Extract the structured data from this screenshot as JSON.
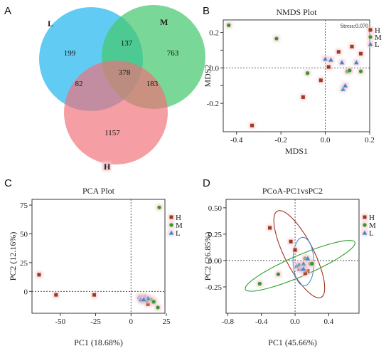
{
  "colors": {
    "H": "#9b3a22",
    "M": "#2e9a2e",
    "L": "#3b87d6",
    "ellipse_H": "#a0301f",
    "ellipse_M": "#2f9d2f",
    "ellipse_L": "#3a8fd8",
    "venn_L": "#3fc0f2",
    "venn_M": "#45c86f",
    "venn_H": "#f07078",
    "glow": "#f4c7cc"
  },
  "panels": {
    "A": {
      "letter": "A"
    },
    "B": {
      "letter": "B"
    },
    "C": {
      "letter": "C"
    },
    "D": {
      "letter": "D"
    }
  },
  "chart_data": [
    {
      "type": "venn",
      "panel": "A",
      "sets": [
        "L",
        "M",
        "H"
      ],
      "labels": {
        "L": "L",
        "M": "M",
        "H": "H"
      },
      "regions": {
        "L_only": 199,
        "M_only": 763,
        "H_only": 1157,
        "L_M": 137,
        "L_H": 82,
        "M_H": 183,
        "L_M_H": 378
      }
    },
    {
      "type": "scatter",
      "panel": "B",
      "title": "NMDS Plot",
      "xlabel": "MDS1",
      "ylabel": "MDS2",
      "annotation": "Stress:0.070",
      "xlim": [
        -0.46,
        0.2
      ],
      "ylim": [
        -0.36,
        0.27
      ],
      "xticks": [
        -0.4,
        -0.2,
        0.0,
        0.2
      ],
      "xticklabels": [
        "-0.4",
        "-0.2",
        "0.0",
        "0.2"
      ],
      "yticks": [
        -0.2,
        -0.1,
        0.0,
        0.1,
        0.2
      ],
      "yticklabels": [
        "-0.2",
        "",
        "0.0",
        "",
        "0.2"
      ],
      "legend": [
        "H",
        "M",
        "L"
      ],
      "legend_position": "top-right",
      "series": [
        {
          "name": "H",
          "marker": "square",
          "points": [
            [
              -0.33,
              -0.325
            ],
            [
              -0.1,
              -0.165
            ],
            [
              -0.02,
              -0.07
            ],
            [
              0.06,
              0.09
            ],
            [
              0.12,
              0.12
            ],
            [
              0.16,
              0.08
            ],
            [
              0.015,
              0.005
            ]
          ]
        },
        {
          "name": "M",
          "marker": "circle",
          "points": [
            [
              -0.435,
              0.24
            ],
            [
              -0.22,
              0.165
            ],
            [
              -0.08,
              -0.03
            ],
            [
              0.1,
              -0.02
            ],
            [
              0.11,
              -0.015
            ],
            [
              0.16,
              -0.02
            ]
          ]
        },
        {
          "name": "L",
          "marker": "triangle",
          "points": [
            [
              0.0,
              0.05
            ],
            [
              0.025,
              0.045
            ],
            [
              0.075,
              0.03
            ],
            [
              0.14,
              0.03
            ],
            [
              0.08,
              -0.12
            ],
            [
              0.09,
              -0.1
            ]
          ]
        }
      ]
    },
    {
      "type": "scatter",
      "panel": "C",
      "title": "PCA Plot",
      "xlabel": "PC1 (18.68%)",
      "ylabel": "PC2 (12.16%)",
      "xlim": [
        -70,
        24
      ],
      "ylim": [
        -19,
        80
      ],
      "xticks": [
        -50,
        -25,
        0,
        25
      ],
      "xticklabels": [
        "-50",
        "-25",
        "0",
        "25"
      ],
      "yticks": [
        0,
        25,
        50,
        75
      ],
      "yticklabels": [
        "0",
        "25",
        "50",
        "75"
      ],
      "legend": [
        "H",
        "M",
        "L"
      ],
      "legend_position": "top-right",
      "series": [
        {
          "name": "H",
          "marker": "square",
          "points": [
            [
              -65,
              14.5
            ],
            [
              -53,
              -3
            ],
            [
              -26,
              -3
            ],
            [
              8,
              -8
            ],
            [
              10,
              -7
            ],
            [
              12,
              -11
            ],
            [
              16,
              -9
            ]
          ]
        },
        {
          "name": "M",
          "marker": "circle",
          "points": [
            [
              20,
              73
            ],
            [
              14,
              -7
            ],
            [
              16,
              -9
            ],
            [
              19,
              -14
            ],
            [
              9,
              -6
            ],
            [
              11,
              -8
            ]
          ]
        },
        {
          "name": "L",
          "marker": "triangle",
          "points": [
            [
              6,
              -5
            ],
            [
              8,
              -5
            ],
            [
              10,
              -5
            ],
            [
              12,
              -6
            ],
            [
              7,
              -7
            ],
            [
              9,
              -7
            ]
          ]
        }
      ]
    },
    {
      "type": "scatter",
      "panel": "D",
      "title": "PCoA-PC1vsPC2",
      "xlabel": "PC1 (45.66%)",
      "ylabel": "PC2 (26.85%)",
      "xlim": [
        -0.82,
        0.76
      ],
      "ylim": [
        -0.5,
        0.58
      ],
      "xticks": [
        -0.8,
        -0.4,
        0.0,
        0.4
      ],
      "xticklabels": [
        "-0.8",
        "-0.4",
        "0.0",
        "0.4"
      ],
      "yticks": [
        -0.25,
        0.0,
        0.25,
        0.5
      ],
      "yticklabels": [
        "-0.25",
        "0.00",
        "0.25",
        "0.50"
      ],
      "legend": [
        "H",
        "M",
        "L"
      ],
      "legend_position": "top-right",
      "series": [
        {
          "name": "H",
          "marker": "square",
          "points": [
            [
              -0.3,
              0.31
            ],
            [
              -0.05,
              0.18
            ],
            [
              0.0,
              0.1
            ],
            [
              0.05,
              -0.08
            ],
            [
              0.1,
              -0.07
            ],
            [
              0.15,
              -0.1
            ],
            [
              0.12,
              -0.12
            ]
          ]
        },
        {
          "name": "M",
          "marker": "circle",
          "points": [
            [
              -0.42,
              -0.22
            ],
            [
              -0.2,
              -0.13
            ],
            [
              0.12,
              0.02
            ],
            [
              0.18,
              -0.03
            ],
            [
              0.2,
              -0.03
            ],
            [
              0.1,
              -0.05
            ]
          ]
        },
        {
          "name": "L",
          "marker": "triangle",
          "points": [
            [
              0.02,
              -0.05
            ],
            [
              0.05,
              -0.04
            ],
            [
              0.1,
              -0.03
            ],
            [
              0.15,
              0.02
            ],
            [
              0.08,
              -0.08
            ],
            [
              0.1,
              -0.08
            ]
          ]
        }
      ],
      "ellipses": [
        {
          "group": "H",
          "center": [
            0.05,
            0.06
          ],
          "semi_axes": [
            0.15,
            0.47
          ],
          "angle_deg": 30
        },
        {
          "group": "M",
          "center": [
            0.06,
            -0.05
          ],
          "semi_axes": [
            0.62,
            0.1
          ],
          "angle_deg": 21
        },
        {
          "group": "L",
          "center": [
            0.1,
            -0.01
          ],
          "semi_axes": [
            0.11,
            0.23
          ],
          "angle_deg": 2
        }
      ]
    }
  ]
}
